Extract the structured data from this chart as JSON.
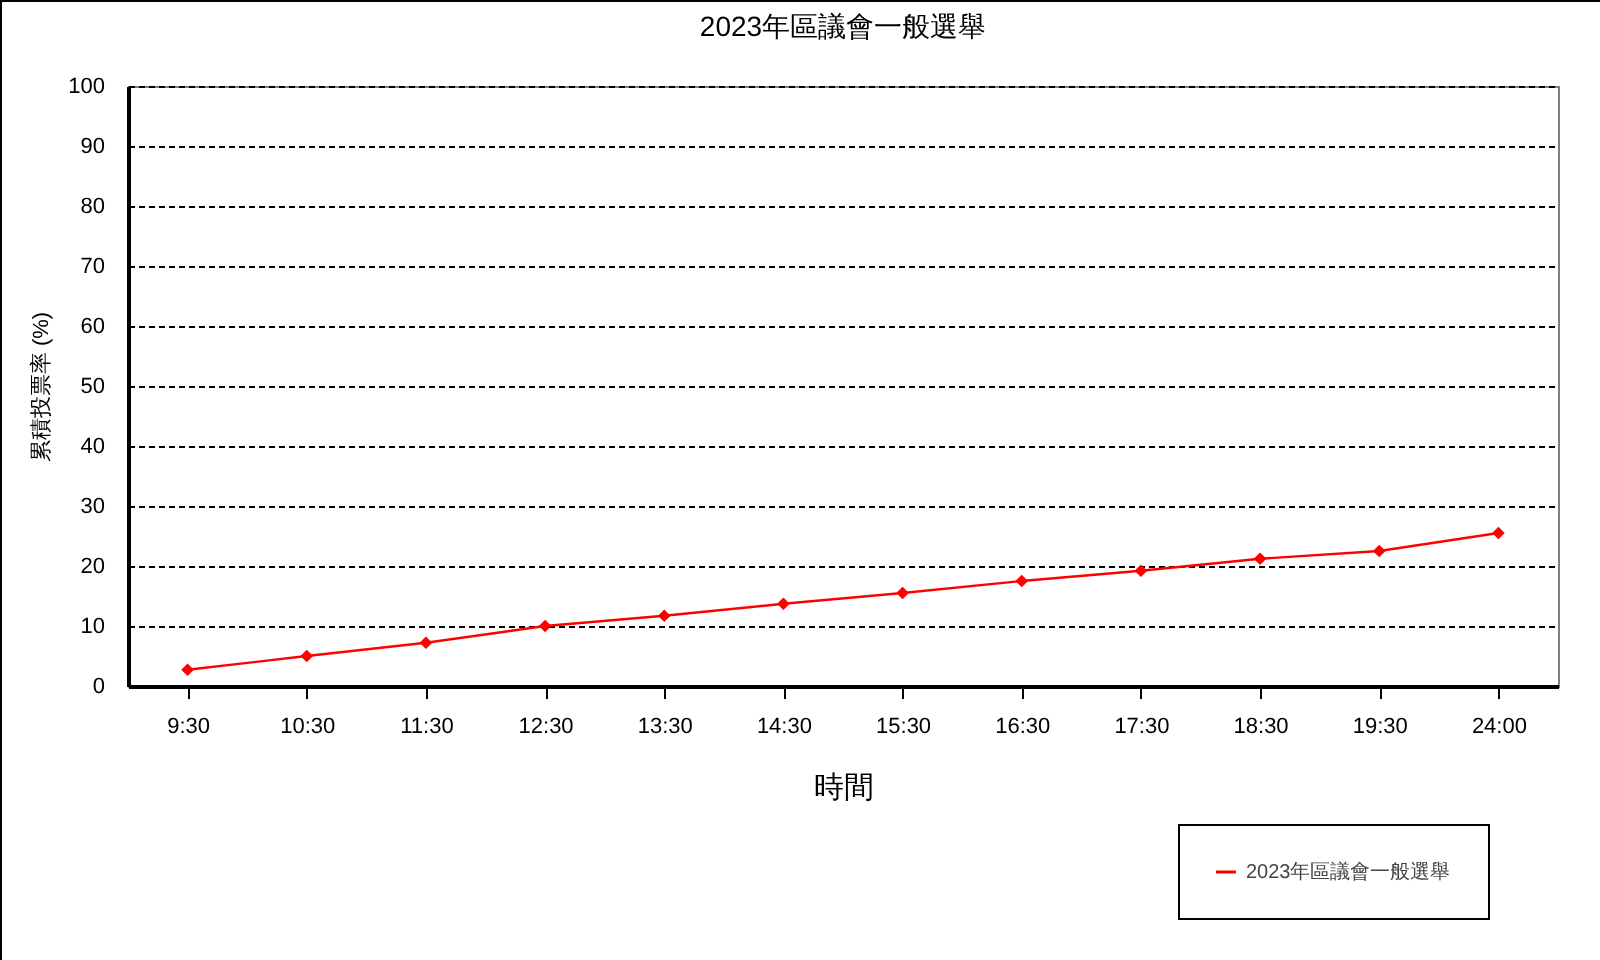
{
  "chart_data": {
    "type": "line",
    "title": "2023年區議會一般選舉",
    "xlabel": "時間",
    "ylabel": "累積投票率 (%)",
    "categories": [
      "9:30",
      "10:30",
      "11:30",
      "12:30",
      "13:30",
      "14:30",
      "15:30",
      "16:30",
      "17:30",
      "18:30",
      "19:30",
      "24:00"
    ],
    "series": [
      {
        "name": "2023年區議會一般選舉",
        "color": "#ff0000",
        "values": [
          2.7,
          5,
          7.2,
          10,
          11.7,
          13.7,
          15.5,
          17.5,
          19.2,
          21.2,
          22.5,
          25.5
        ]
      }
    ],
    "ylim": [
      0,
      100
    ],
    "yticks": [
      0,
      10,
      20,
      30,
      40,
      50,
      60,
      70,
      80,
      90,
      100
    ],
    "grid": "y",
    "legend": "bottom right",
    "marker": "diamond",
    "line_style": "solid"
  }
}
